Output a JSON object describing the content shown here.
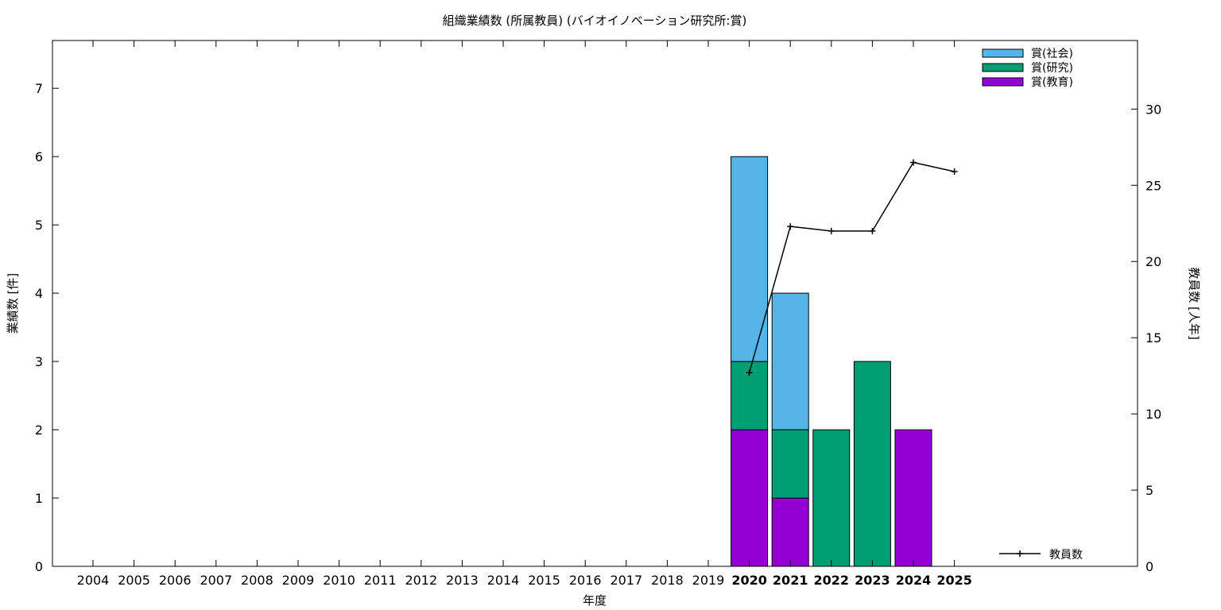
{
  "chart_data": {
    "type": "bar",
    "title": "組織業績数 (所属教員) (バイオイノベーション研究所:賞)",
    "xlabel": "年度",
    "ylabel": "業績数 [件]",
    "y2label": "教員数 [人年]",
    "categories": [
      "2004",
      "2005",
      "2006",
      "2007",
      "2008",
      "2009",
      "2010",
      "2011",
      "2012",
      "2013",
      "2014",
      "2015",
      "2016",
      "2017",
      "2018",
      "2019",
      "2020",
      "2021",
      "2022",
      "2023",
      "2024",
      "2025"
    ],
    "highlight_categories": [
      "2020",
      "2021",
      "2022",
      "2023",
      "2024",
      "2025"
    ],
    "ylim": [
      0,
      7.7
    ],
    "yticks": [
      0,
      1,
      2,
      3,
      4,
      5,
      6,
      7
    ],
    "y2lim": [
      0,
      34.5
    ],
    "y2ticks": [
      0,
      5,
      10,
      15,
      20,
      25,
      30
    ],
    "stacked": true,
    "series": [
      {
        "name": "賞(教育)",
        "color": "#9400d3",
        "values": [
          0,
          0,
          0,
          0,
          0,
          0,
          0,
          0,
          0,
          0,
          0,
          0,
          0,
          0,
          0,
          0,
          2,
          1,
          0,
          0,
          2,
          0
        ]
      },
      {
        "name": "賞(研究)",
        "color": "#009e73",
        "values": [
          0,
          0,
          0,
          0,
          0,
          0,
          0,
          0,
          0,
          0,
          0,
          0,
          0,
          0,
          0,
          0,
          1,
          1,
          2,
          3,
          0,
          0
        ]
      },
      {
        "name": "賞(社会)",
        "color": "#56b4e9",
        "values": [
          0,
          0,
          0,
          0,
          0,
          0,
          0,
          0,
          0,
          0,
          0,
          0,
          0,
          0,
          0,
          0,
          3,
          2,
          0,
          0,
          0,
          0
        ]
      }
    ],
    "legend_order": [
      "賞(社会)",
      "賞(研究)",
      "賞(教育)"
    ],
    "legend_position": "top-right",
    "line_series": {
      "name": "教員数",
      "axis": "y2",
      "color": "#000000",
      "x": [
        "2020",
        "2021",
        "2022",
        "2023",
        "2024",
        "2025"
      ],
      "values": [
        12.7,
        22.3,
        22.0,
        22.0,
        26.5,
        25.9
      ],
      "legend_position": "bottom-right"
    },
    "grid": false
  }
}
